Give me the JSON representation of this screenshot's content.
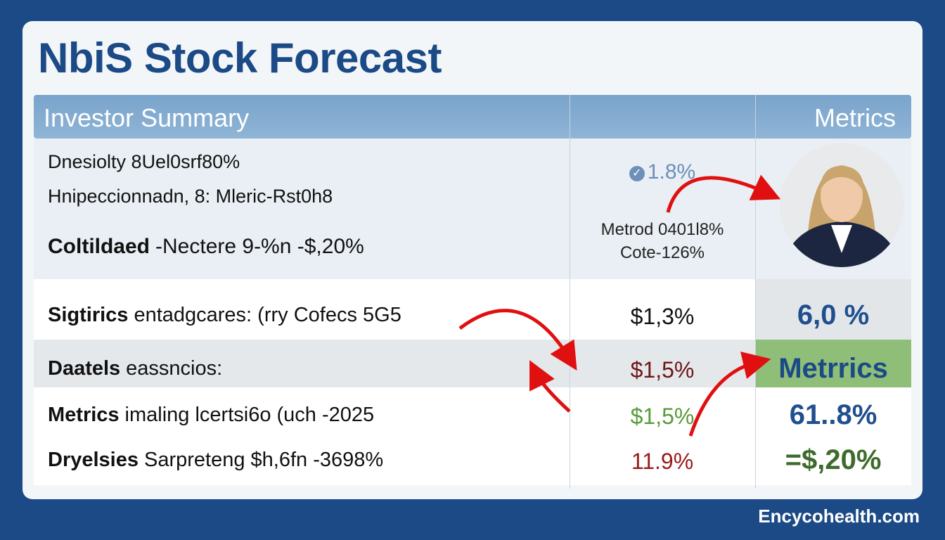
{
  "title": "NbiS Stock Forecast",
  "header": {
    "left": "Investor Summary",
    "right": "Metrics"
  },
  "summary": {
    "lines": [
      "Dnesiolty 8Uel0srf80%",
      "Hnipeccionnadn, 8: Mleric-Rst0h8"
    ],
    "bold_line": {
      "bold": "Coltildaed",
      "rest": "-Nectere 9-%n -$,20%"
    },
    "middle": [
      "1.8%",
      "Metrod 0401l8%",
      "Cote-126%"
    ]
  },
  "rows": [
    {
      "bold": "Sigtirics",
      "rest": "entadgcares: (rry Cofecs 5G5",
      "mid": "$1,3%",
      "right": "6,0 %"
    },
    {
      "bold": "Daatels",
      "rest": "eassncios:",
      "mid": "$1,5%",
      "right": "Metrrics"
    },
    {
      "bold": "Metrics",
      "rest": "imaling lcertsi6o (uch -2025",
      "mid": "$1,5%",
      "right": "61..8%"
    },
    {
      "bold": "Dryelsies",
      "rest": "Sarpreteng $h,6fn -3698%",
      "mid": "11.9%",
      "right": "=$,20%"
    }
  ],
  "watermark": "Encycohealth.com"
}
